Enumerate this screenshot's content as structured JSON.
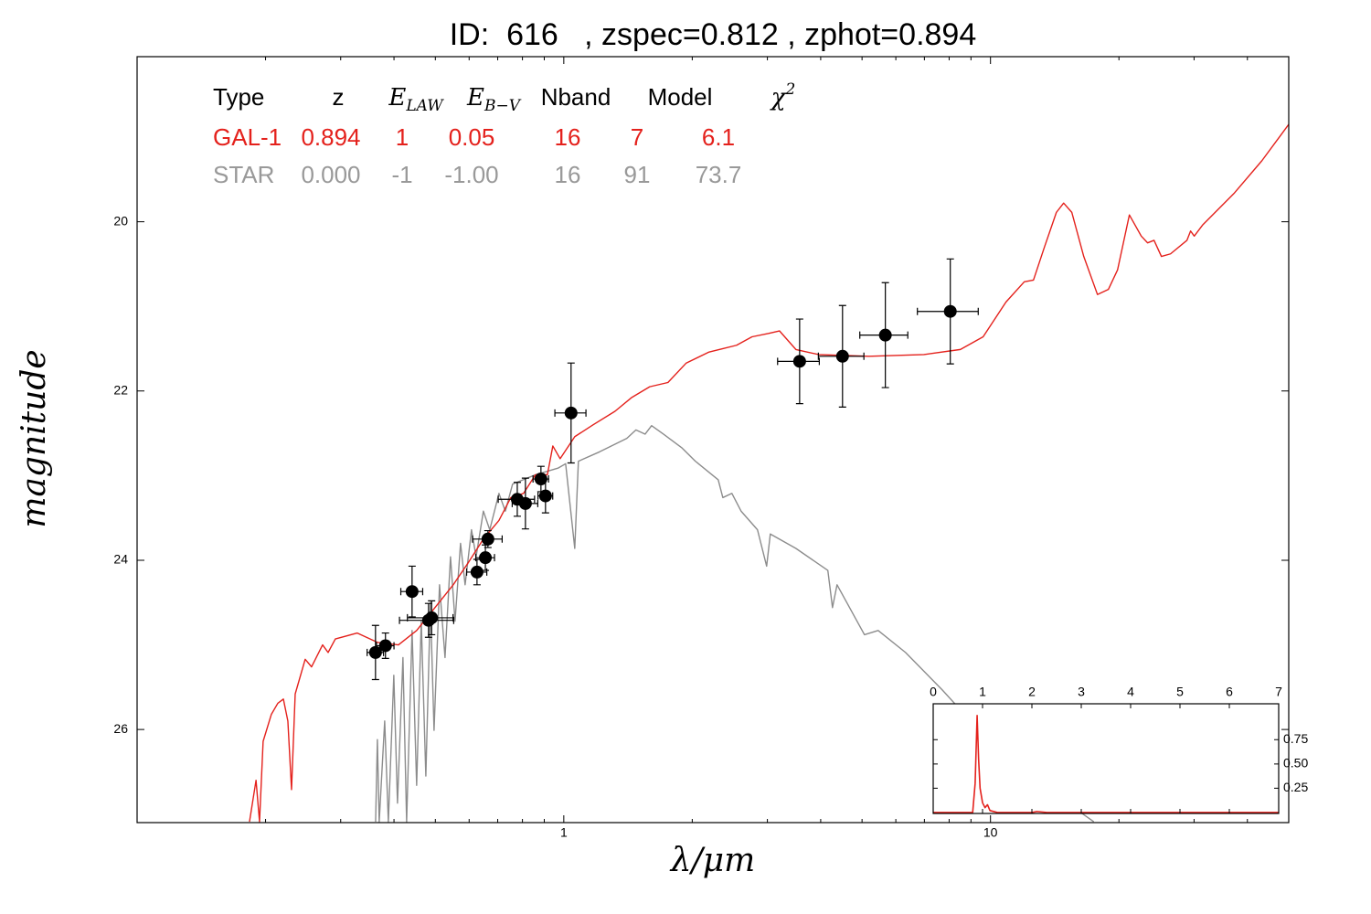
{
  "chart_data": [
    {
      "type": "line",
      "title": "ID:  616   , zspec=0.812 , zphot=0.894",
      "xlabel": "λ/μm",
      "ylabel": "magnitude",
      "x_log": true,
      "xlim": [
        0.1,
        50
      ],
      "ylim": [
        27.1,
        18.05
      ],
      "xticks": [
        1,
        10
      ],
      "xminorticks": [
        0.2,
        0.3,
        0.4,
        0.5,
        0.6,
        0.7,
        0.8,
        0.9,
        2,
        3,
        4,
        5,
        6,
        7,
        8,
        9,
        20,
        30,
        40
      ],
      "yticks": [
        20,
        22,
        24,
        26
      ],
      "series": [
        {
          "color": "#8c8c8c",
          "x": [
            0.3622,
            0.3657,
            0.3693,
            0.3804,
            0.388,
            0.3996,
            0.4076,
            0.4198,
            0.4282,
            0.441,
            0.452,
            0.4634,
            0.475,
            0.4868,
            0.4965,
            0.5114,
            0.5268,
            0.5426,
            0.5561,
            0.5728,
            0.5871,
            0.6077,
            0.6229,
            0.6479,
            0.6706,
            0.7047,
            0.7295,
            0.7586,
            0.8582,
            0.9709,
            1.01,
            1.061,
            1.082,
            1.212,
            1.405,
            1.476,
            1.551,
            1.606,
            1.712,
            1.889,
            2.034,
            2.301,
            2.359,
            2.477,
            2.603,
            2.844,
            2.988,
            3.048,
            3.499,
            4.157,
            4.263,
            4.369,
            5.066,
            5.454,
            6.323,
            7.701,
            9.85,
            13.24,
            17.46
          ],
          "values": [
            27.09,
            26.12,
            27.09,
            25.9,
            27.09,
            25.36,
            26.87,
            25.15,
            27.09,
            24.83,
            26.66,
            24.72,
            26.55,
            24.5,
            26.01,
            24.29,
            25.15,
            23.96,
            24.72,
            23.8,
            24.29,
            23.64,
            23.96,
            23.42,
            23.64,
            23.21,
            23.42,
            23.1,
            22.99,
            22.91,
            22.86,
            23.86,
            22.83,
            22.72,
            22.56,
            22.46,
            22.51,
            22.41,
            22.51,
            22.67,
            22.83,
            23.05,
            23.26,
            23.21,
            23.42,
            23.64,
            24.07,
            23.69,
            23.86,
            24.12,
            24.56,
            24.29,
            24.88,
            24.83,
            25.09,
            25.53,
            26.12,
            26.66,
            27.09
          ]
        },
        {
          "color": "#e4211c",
          "x": [
            0.1834,
            0.19,
            0.1936,
            0.1974,
            0.2064,
            0.2137,
            0.2202,
            0.2256,
            0.2301,
            0.2347,
            0.2477,
            0.2564,
            0.2721,
            0.2803,
            0.2915,
            0.3281,
            0.3657,
            0.4097,
            0.452,
            0.4989,
            0.5507,
            0.5988,
            0.6479,
            0.7047,
            0.7513,
            0.8049,
            0.8582,
            0.9152,
            0.9425,
            0.9804,
            1.061,
            1.171,
            1.318,
            1.44,
            1.59,
            1.754,
            1.936,
            2.19,
            2.54,
            2.761,
            3.018,
            3.202,
            3.499,
            3.958,
            5.19,
            6.98,
            8.5,
            9.61,
            10.87,
            12.0,
            12.61,
            13.38,
            14.27,
            14.84,
            15.51,
            16.54,
            17.81,
            18.89,
            19.85,
            21.16,
            22.56,
            23.35,
            24.17,
            25.15,
            26.42,
            28.87,
            29.44,
            30.03,
            31.4,
            37.3,
            43.25,
            50
          ],
          "values": [
            27.09,
            26.6,
            27.09,
            26.14,
            25.82,
            25.69,
            25.64,
            25.9,
            26.71,
            25.58,
            25.17,
            25.26,
            25.0,
            25.09,
            24.93,
            24.86,
            24.97,
            25.0,
            24.83,
            24.56,
            24.29,
            24.02,
            23.75,
            23.53,
            23.26,
            23.21,
            22.99,
            22.99,
            22.65,
            22.8,
            22.54,
            22.4,
            22.24,
            22.08,
            21.95,
            21.9,
            21.67,
            21.54,
            21.46,
            21.36,
            21.32,
            21.29,
            21.51,
            21.57,
            21.59,
            21.57,
            21.51,
            21.36,
            20.95,
            20.71,
            20.69,
            20.3,
            19.89,
            19.78,
            19.89,
            20.41,
            20.86,
            20.8,
            20.57,
            19.92,
            20.17,
            20.25,
            20.22,
            20.41,
            20.38,
            20.22,
            20.11,
            20.17,
            20.04,
            19.66,
            19.28,
            18.85
          ]
        }
      ],
      "points": {
        "color": "#000000",
        "x": [
          0.362,
          0.382,
          0.441,
          0.482,
          0.49,
          0.626,
          0.655,
          0.664,
          0.778,
          0.813,
          0.884,
          0.906,
          1.04,
          3.57,
          4.5,
          5.67,
          8.05
        ],
        "values": [
          25.09,
          25.01,
          24.37,
          24.71,
          24.68,
          24.14,
          23.97,
          23.75,
          23.28,
          23.33,
          23.04,
          23.24,
          22.26,
          21.65,
          21.59,
          21.34,
          21.06
        ],
        "xerr": [
          0.016,
          0.018,
          0.026,
          0.07,
          0.06,
          0.034,
          0.033,
          0.053,
          0.076,
          0.056,
          0.037,
          0.036,
          0.087,
          0.4,
          0.55,
          0.73,
          1.31
        ],
        "yerr": [
          0.32,
          0.15,
          0.3,
          0.2,
          0.2,
          0.15,
          0.15,
          0.1,
          0.2,
          0.3,
          0.15,
          0.2,
          0.59,
          0.5,
          0.6,
          0.62,
          0.62
        ]
      }
    },
    {
      "type": "line",
      "xlim": [
        0,
        7
      ],
      "ylim": [
        -0.01,
        1.12
      ],
      "xticks": [
        0,
        1,
        2,
        3,
        4,
        5,
        6,
        7
      ],
      "yticks": [
        0.25,
        {
          "value": 0.5,
          "label": "0.50"
        },
        0.75
      ],
      "series": [
        {
          "color": "#e4211c",
          "x": [
            0,
            0.8,
            0.85,
            0.89,
            0.92,
            0.95,
            1.0,
            1.05,
            1.1,
            1.15,
            1.3,
            2.0,
            2.1,
            2.3,
            7
          ],
          "values": [
            0,
            0,
            0.3,
            1.0,
            0.55,
            0.25,
            0.1,
            0.05,
            0.08,
            0.02,
            0,
            0,
            0.01,
            0,
            0
          ]
        }
      ]
    }
  ],
  "fit_table": {
    "columns": [
      {
        "text": "Type"
      },
      {
        "text": "z"
      },
      {
        "base": "E",
        "sub": "LAW"
      },
      {
        "base": "E",
        "sub": "B−V"
      },
      {
        "text": "Nband"
      },
      {
        "text": "Model"
      },
      {
        "base": "χ",
        "sup": "2"
      }
    ],
    "rows": [
      {
        "color": "#e4211c",
        "cells": [
          "GAL-1",
          "0.894",
          "1",
          "0.05",
          "16",
          "7",
          "6.1"
        ]
      },
      {
        "color": "#999999",
        "cells": [
          "STAR",
          "0.000",
          "-1",
          "-1.00",
          "16",
          "91",
          "73.7"
        ]
      }
    ]
  }
}
